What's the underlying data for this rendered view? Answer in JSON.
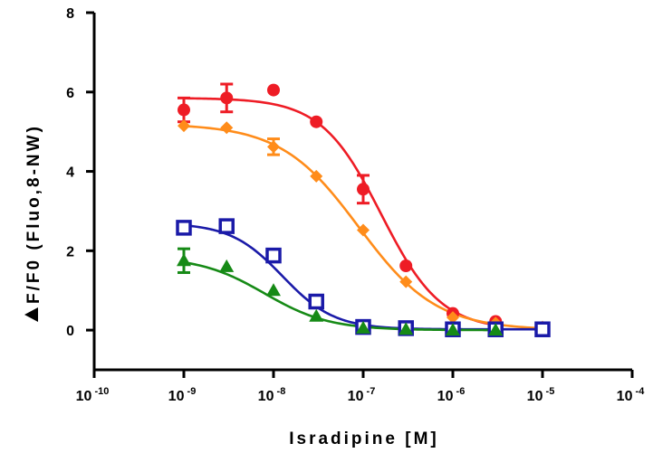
{
  "chart_data": {
    "type": "scatter",
    "title": "",
    "xlabel": "Isradipine [M]",
    "ylabel": "F/F0 (Fluo,8-NW)",
    "ylabel_prefix_symbol": "triangle-delta",
    "x_scale": "log",
    "xlim": [
      1e-10,
      0.0001
    ],
    "ylim": [
      -1,
      8
    ],
    "x_ticks": [
      {
        "base": "10",
        "exp": "-10"
      },
      {
        "base": "10",
        "exp": "-9"
      },
      {
        "base": "10",
        "exp": "-8"
      },
      {
        "base": "10",
        "exp": "-7"
      },
      {
        "base": "10",
        "exp": "-6"
      },
      {
        "base": "10",
        "exp": "-5"
      },
      {
        "base": "10",
        "exp": "-4"
      }
    ],
    "y_ticks": [
      "0",
      "2",
      "4",
      "6",
      "8"
    ],
    "grid": false,
    "legend": "none",
    "series": [
      {
        "marker": "circle",
        "color": "#ee1c25",
        "x": [
          1e-09,
          3e-09,
          1e-08,
          3e-08,
          1e-07,
          3e-07,
          1e-06,
          3e-06
        ],
        "y": [
          5.55,
          5.85,
          6.05,
          5.25,
          3.55,
          1.62,
          0.42,
          0.22
        ],
        "err": [
          0.3,
          0.35,
          0.0,
          0.0,
          0.35,
          0.0,
          0.0,
          0.0
        ],
        "fit": {
          "top": 5.85,
          "bottom": 0.0,
          "logEC50": -6.8,
          "hill": 1.3
        }
      },
      {
        "marker": "diamond",
        "color": "#ff8c1a",
        "x": [
          1e-09,
          3e-09,
          1e-08,
          3e-08,
          1e-07,
          3e-07,
          1e-06,
          3e-06,
          1e-05
        ],
        "y": [
          5.15,
          5.1,
          4.62,
          3.88,
          2.52,
          1.22,
          0.32,
          0.18,
          0.08
        ],
        "err": [
          0.0,
          0.0,
          0.2,
          0.0,
          0.0,
          0.0,
          0.0,
          0.0,
          0.0
        ],
        "fit": {
          "top": 5.2,
          "bottom": 0.0,
          "logEC50": -7.05,
          "hill": 1.0
        }
      },
      {
        "marker": "square-open",
        "color": "#1a1aa8",
        "x": [
          1e-09,
          3e-09,
          1e-08,
          3e-08,
          1e-07,
          3e-07,
          1e-06,
          3e-06,
          1e-05
        ],
        "y": [
          2.58,
          2.62,
          1.88,
          0.72,
          0.08,
          0.05,
          0.02,
          0.02,
          0.02
        ],
        "err": [
          0.0,
          0.0,
          0.0,
          0.0,
          0.0,
          0.0,
          0.0,
          0.0,
          0.0
        ],
        "fit": {
          "top": 2.7,
          "bottom": 0.02,
          "logEC50": -7.9,
          "hill": 1.5
        }
      },
      {
        "marker": "triangle",
        "color": "#168a16",
        "x": [
          1e-09,
          3e-09,
          1e-08,
          3e-08,
          1e-07,
          3e-07,
          1e-06,
          3e-06
        ],
        "y": [
          1.75,
          1.6,
          1.0,
          0.35,
          0.05,
          0.02,
          0.0,
          0.0
        ],
        "err": [
          0.3,
          0.0,
          0.0,
          0.0,
          0.0,
          0.0,
          0.0,
          0.0
        ],
        "fit": {
          "top": 1.85,
          "bottom": 0.0,
          "logEC50": -8.1,
          "hill": 1.2
        }
      }
    ]
  }
}
